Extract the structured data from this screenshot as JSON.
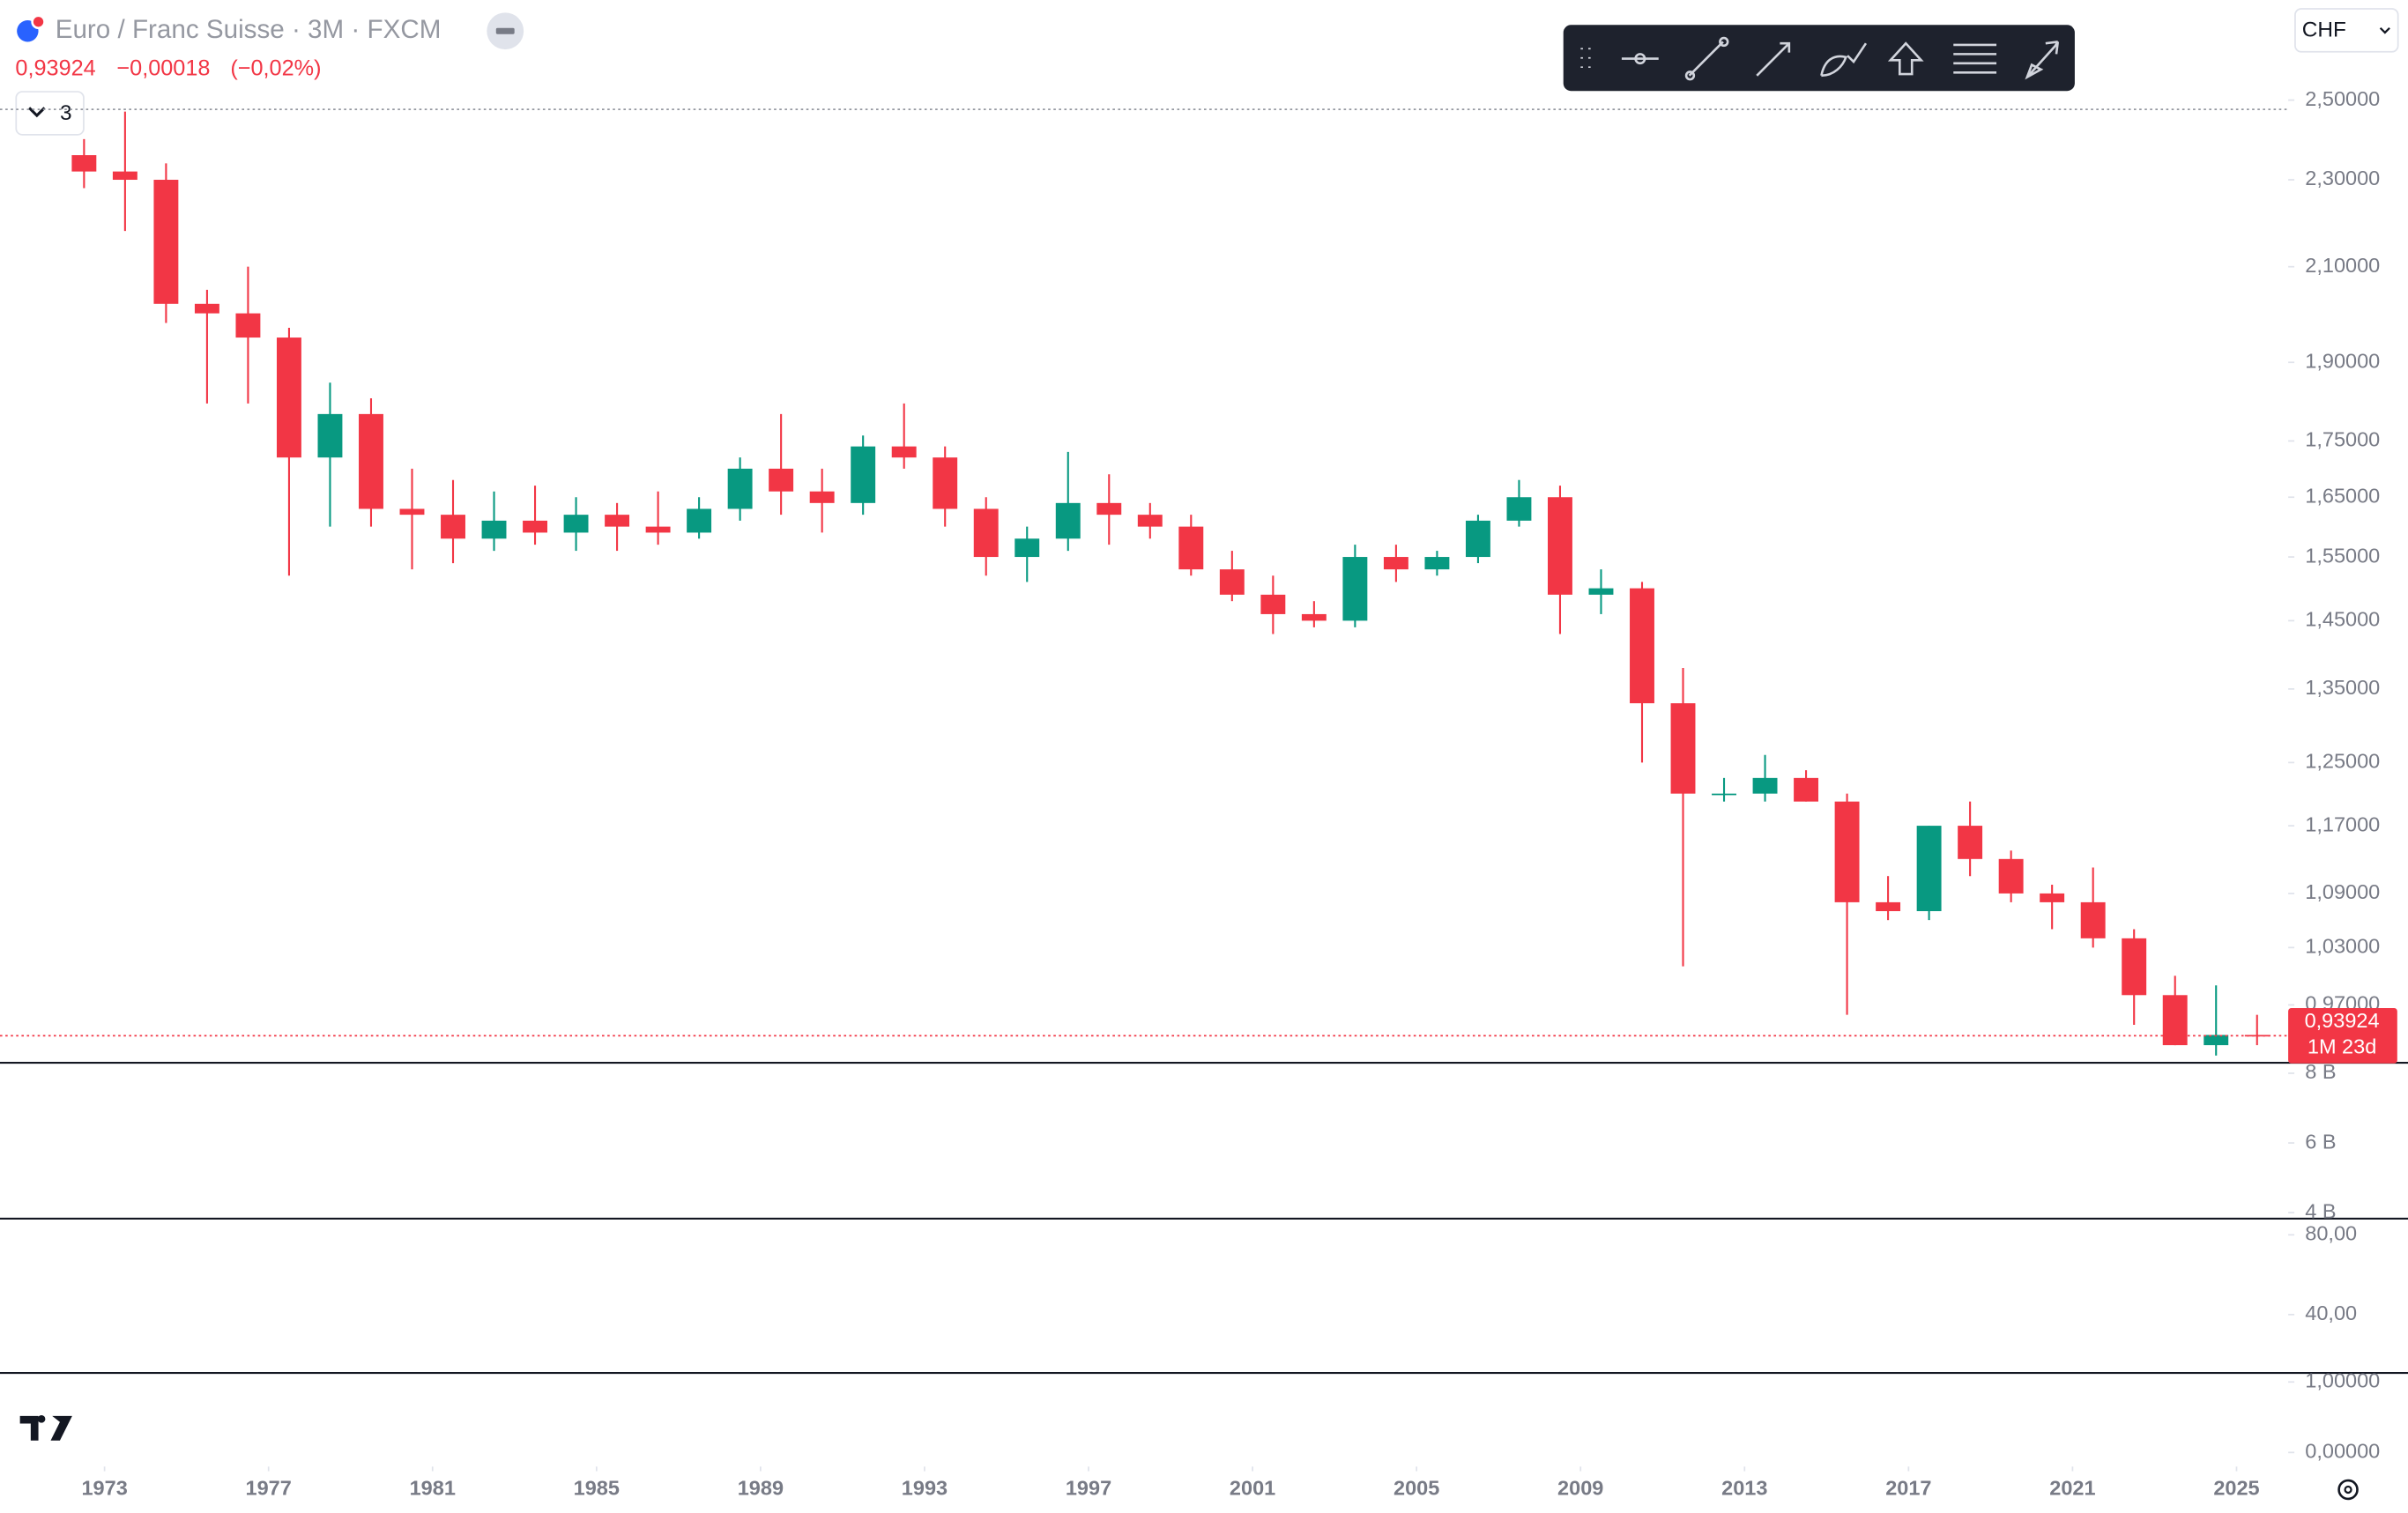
{
  "header": {
    "title": "Euro / Franc Suisse · 3M · FXCM",
    "last": "0,93924",
    "change": "−0,00018",
    "change_pct": "(−0,02%)",
    "indicators_count": "3",
    "currency": "CHF"
  },
  "chart_data": {
    "type": "candlestick",
    "log_scale": true,
    "up_color": "#089981",
    "down_color": "#f23645",
    "xlim": [
      1970.45,
      2026.26
    ],
    "xticks": [
      1973,
      1977,
      1981,
      1985,
      1989,
      1993,
      1997,
      2001,
      2005,
      2009,
      2013,
      2017,
      2021,
      2025
    ],
    "ylim": [
      0.913,
      2.775
    ],
    "yticks": [
      {
        "value": 2.5,
        "label": "2,50000"
      },
      {
        "value": 2.3,
        "label": "2,30000"
      },
      {
        "value": 2.1,
        "label": "2,10000"
      },
      {
        "value": 1.9,
        "label": "1,90000"
      },
      {
        "value": 1.75,
        "label": "1,75000"
      },
      {
        "value": 1.65,
        "label": "1,65000"
      },
      {
        "value": 1.55,
        "label": "1,55000"
      },
      {
        "value": 1.45,
        "label": "1,45000"
      },
      {
        "value": 1.35,
        "label": "1,35000"
      },
      {
        "value": 1.25,
        "label": "1,25000"
      },
      {
        "value": 1.17,
        "label": "1,17000"
      },
      {
        "value": 1.09,
        "label": "1,09000"
      },
      {
        "value": 1.03,
        "label": "1,03000"
      },
      {
        "value": 0.97,
        "label": "0,97000"
      }
    ],
    "last_price": {
      "value": 0.93924,
      "label": "0,93924"
    },
    "countdown": "1M 23d",
    "candles": [
      {
        "x": 1972.5,
        "open": 2.36,
        "high": 2.4,
        "low": 2.28,
        "close": 2.32
      },
      {
        "x": 1973.5,
        "open": 2.32,
        "high": 2.47,
        "low": 2.18,
        "close": 2.3
      },
      {
        "x": 1974.5,
        "open": 2.3,
        "high": 2.34,
        "low": 1.98,
        "close": 2.02
      },
      {
        "x": 1975.5,
        "open": 2.02,
        "high": 2.05,
        "low": 1.82,
        "close": 2.0
      },
      {
        "x": 1976.5,
        "open": 2.0,
        "high": 2.1,
        "low": 1.82,
        "close": 1.95
      },
      {
        "x": 1977.5,
        "open": 1.95,
        "high": 1.97,
        "low": 1.52,
        "close": 1.72
      },
      {
        "x": 1978.5,
        "open": 1.72,
        "high": 1.86,
        "low": 1.6,
        "close": 1.8
      },
      {
        "x": 1979.5,
        "open": 1.8,
        "high": 1.83,
        "low": 1.6,
        "close": 1.63
      },
      {
        "x": 1980.5,
        "open": 1.63,
        "high": 1.7,
        "low": 1.53,
        "close": 1.62
      },
      {
        "x": 1981.5,
        "open": 1.62,
        "high": 1.68,
        "low": 1.54,
        "close": 1.58
      },
      {
        "x": 1982.5,
        "open": 1.58,
        "high": 1.66,
        "low": 1.56,
        "close": 1.61
      },
      {
        "x": 1983.5,
        "open": 1.61,
        "high": 1.67,
        "low": 1.57,
        "close": 1.59
      },
      {
        "x": 1984.5,
        "open": 1.59,
        "high": 1.65,
        "low": 1.56,
        "close": 1.62
      },
      {
        "x": 1985.5,
        "open": 1.62,
        "high": 1.64,
        "low": 1.56,
        "close": 1.6
      },
      {
        "x": 1986.5,
        "open": 1.6,
        "high": 1.66,
        "low": 1.57,
        "close": 1.59
      },
      {
        "x": 1987.5,
        "open": 1.59,
        "high": 1.65,
        "low": 1.58,
        "close": 1.63
      },
      {
        "x": 1988.5,
        "open": 1.63,
        "high": 1.72,
        "low": 1.61,
        "close": 1.7
      },
      {
        "x": 1989.5,
        "open": 1.7,
        "high": 1.8,
        "low": 1.62,
        "close": 1.66
      },
      {
        "x": 1990.5,
        "open": 1.66,
        "high": 1.7,
        "low": 1.59,
        "close": 1.64
      },
      {
        "x": 1991.5,
        "open": 1.64,
        "high": 1.76,
        "low": 1.62,
        "close": 1.74
      },
      {
        "x": 1992.5,
        "open": 1.74,
        "high": 1.82,
        "low": 1.7,
        "close": 1.72
      },
      {
        "x": 1993.5,
        "open": 1.72,
        "high": 1.74,
        "low": 1.6,
        "close": 1.63
      },
      {
        "x": 1994.5,
        "open": 1.63,
        "high": 1.65,
        "low": 1.52,
        "close": 1.55
      },
      {
        "x": 1995.5,
        "open": 1.55,
        "high": 1.6,
        "low": 1.51,
        "close": 1.58
      },
      {
        "x": 1996.5,
        "open": 1.58,
        "high": 1.73,
        "low": 1.56,
        "close": 1.64
      },
      {
        "x": 1997.5,
        "open": 1.64,
        "high": 1.69,
        "low": 1.57,
        "close": 1.62
      },
      {
        "x": 1998.5,
        "open": 1.62,
        "high": 1.64,
        "low": 1.58,
        "close": 1.6
      },
      {
        "x": 1999.5,
        "open": 1.6,
        "high": 1.62,
        "low": 1.52,
        "close": 1.53
      },
      {
        "x": 2000.5,
        "open": 1.53,
        "high": 1.56,
        "low": 1.48,
        "close": 1.49
      },
      {
        "x": 2001.5,
        "open": 1.49,
        "high": 1.52,
        "low": 1.43,
        "close": 1.46
      },
      {
        "x": 2002.5,
        "open": 1.46,
        "high": 1.48,
        "low": 1.44,
        "close": 1.45
      },
      {
        "x": 2003.5,
        "open": 1.45,
        "high": 1.57,
        "low": 1.44,
        "close": 1.55
      },
      {
        "x": 2004.5,
        "open": 1.55,
        "high": 1.57,
        "low": 1.51,
        "close": 1.53
      },
      {
        "x": 2005.5,
        "open": 1.53,
        "high": 1.56,
        "low": 1.52,
        "close": 1.55
      },
      {
        "x": 2006.5,
        "open": 1.55,
        "high": 1.62,
        "low": 1.54,
        "close": 1.61
      },
      {
        "x": 2007.5,
        "open": 1.61,
        "high": 1.68,
        "low": 1.6,
        "close": 1.65
      },
      {
        "x": 2008.5,
        "open": 1.65,
        "high": 1.67,
        "low": 1.43,
        "close": 1.49
      },
      {
        "x": 2009.5,
        "open": 1.49,
        "high": 1.53,
        "low": 1.46,
        "close": 1.5
      },
      {
        "x": 2010.5,
        "open": 1.5,
        "high": 1.51,
        "low": 1.25,
        "close": 1.33
      },
      {
        "x": 2011.5,
        "open": 1.33,
        "high": 1.38,
        "low": 1.01,
        "close": 1.21
      },
      {
        "x": 2012.5,
        "open": 1.21,
        "high": 1.23,
        "low": 1.2,
        "close": 1.21
      },
      {
        "x": 2013.5,
        "open": 1.21,
        "high": 1.26,
        "low": 1.2,
        "close": 1.23
      },
      {
        "x": 2014.5,
        "open": 1.23,
        "high": 1.24,
        "low": 1.2,
        "close": 1.2
      },
      {
        "x": 2015.5,
        "open": 1.2,
        "high": 1.21,
        "low": 0.96,
        "close": 1.08
      },
      {
        "x": 2016.5,
        "open": 1.08,
        "high": 1.11,
        "low": 1.06,
        "close": 1.07
      },
      {
        "x": 2017.5,
        "open": 1.07,
        "high": 1.17,
        "low": 1.06,
        "close": 1.17
      },
      {
        "x": 2018.5,
        "open": 1.17,
        "high": 1.2,
        "low": 1.11,
        "close": 1.13
      },
      {
        "x": 2019.5,
        "open": 1.13,
        "high": 1.14,
        "low": 1.08,
        "close": 1.09
      },
      {
        "x": 2020.5,
        "open": 1.09,
        "high": 1.1,
        "low": 1.05,
        "close": 1.08
      },
      {
        "x": 2021.5,
        "open": 1.08,
        "high": 1.12,
        "low": 1.03,
        "close": 1.04
      },
      {
        "x": 2022.5,
        "open": 1.04,
        "high": 1.05,
        "low": 0.95,
        "close": 0.98
      },
      {
        "x": 2023.5,
        "open": 0.98,
        "high": 1.0,
        "low": 0.93,
        "close": 0.93
      },
      {
        "x": 2024.5,
        "open": 0.93,
        "high": 0.99,
        "low": 0.92,
        "close": 0.94
      },
      {
        "x": 2025.5,
        "open": 0.94,
        "high": 0.96,
        "low": 0.93,
        "close": 0.93924
      }
    ]
  },
  "panes": [
    {
      "ylim": [
        3850000000.0,
        8300000000.0
      ],
      "yticks": [
        {
          "value": 8000000000.0,
          "label": "8 B"
        },
        {
          "value": 6000000000.0,
          "label": "6 B"
        },
        {
          "value": 4000000000.0,
          "label": "4 B"
        }
      ]
    },
    {
      "ylim": [
        11.5,
        88.5
      ],
      "yticks": [
        {
          "value": 80,
          "label": "80,00"
        },
        {
          "value": 40,
          "label": "40,00"
        }
      ]
    },
    {
      "ylim": [
        -0.2,
        1.15
      ],
      "yticks": [
        {
          "value": 1,
          "label": "1,00000"
        },
        {
          "value": 0,
          "label": "0,00000"
        }
      ]
    }
  ]
}
